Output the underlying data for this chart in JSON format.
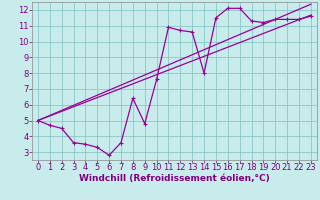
{
  "xlabel": "Windchill (Refroidissement éolien,°C)",
  "bg_color": "#c8ecec",
  "line_color": "#990099",
  "x_windchill": [
    0,
    1,
    2,
    3,
    4,
    5,
    6,
    7,
    8,
    9,
    10,
    11,
    12,
    13,
    14,
    15,
    16,
    17,
    18,
    19,
    20,
    21,
    22,
    23
  ],
  "y_temp": [
    5.0,
    4.7,
    4.5,
    3.6,
    3.5,
    3.3,
    2.8,
    3.6,
    6.4,
    4.8,
    7.6,
    10.9,
    10.7,
    10.6,
    8.0,
    11.5,
    12.1,
    12.1,
    11.3,
    11.2,
    11.4,
    11.4,
    11.4,
    11.6
  ],
  "y_linear1": [
    5.0,
    5.29,
    5.58,
    5.87,
    6.16,
    6.45,
    6.74,
    7.03,
    7.32,
    7.61,
    7.9,
    8.19,
    8.48,
    8.77,
    9.06,
    9.35,
    9.64,
    9.93,
    10.22,
    10.51,
    10.8,
    11.09,
    11.38,
    11.67
  ],
  "y_linear2": [
    5.0,
    5.32,
    5.64,
    5.96,
    6.28,
    6.6,
    6.92,
    7.24,
    7.56,
    7.88,
    8.2,
    8.52,
    8.84,
    9.16,
    9.48,
    9.8,
    10.12,
    10.44,
    10.76,
    11.08,
    11.4,
    11.72,
    12.04,
    12.36
  ],
  "ylim": [
    2.5,
    12.5
  ],
  "xlim": [
    -0.5,
    23.5
  ],
  "xticks": [
    0,
    1,
    2,
    3,
    4,
    5,
    6,
    7,
    8,
    9,
    10,
    11,
    12,
    13,
    14,
    15,
    16,
    17,
    18,
    19,
    20,
    21,
    22,
    23
  ],
  "yticks": [
    3,
    4,
    5,
    6,
    7,
    8,
    9,
    10,
    11,
    12
  ],
  "grid_color": "#7fbfbf",
  "font_color": "#800080",
  "xlabel_fontsize": 6.5,
  "tick_fontsize": 6.0
}
